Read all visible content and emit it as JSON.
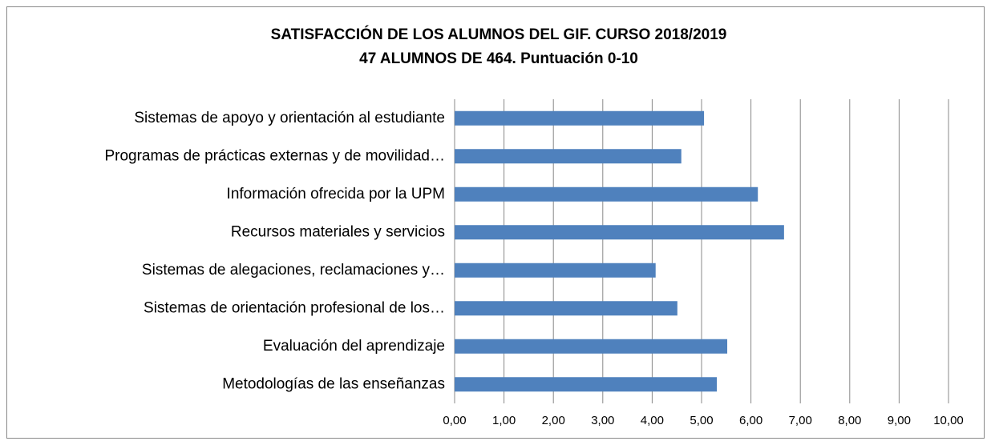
{
  "chart_data": {
    "type": "bar",
    "orientation": "horizontal",
    "title": "SATISFACCIÓN DE LOS ALUMNOS DEL GIF. CURSO 2018/2019",
    "subtitle": "47 ALUMNOS DE 464. Puntuación 0-10",
    "categories": [
      "Sistemas de apoyo y orientación al estudiante",
      "Programas de prácticas externas y de movilidad…",
      "Información ofrecida por la UPM",
      "Recursos materiales y servicios",
      "Sistemas de alegaciones, reclamaciones y…",
      "Sistemas de orientación profesional de los…",
      "Evaluación del aprendizaje",
      "Metodologías de las enseñanzas"
    ],
    "values": [
      5.05,
      4.59,
      6.14,
      6.67,
      4.07,
      4.51,
      5.52,
      5.31
    ],
    "color": "#4f81bd",
    "xlim": [
      0,
      10
    ],
    "xticks": [
      {
        "value": 0,
        "label": "0,00"
      },
      {
        "value": 1,
        "label": "1,00"
      },
      {
        "value": 2,
        "label": "2,00"
      },
      {
        "value": 3,
        "label": "3,00"
      },
      {
        "value": 4,
        "label": "4,00"
      },
      {
        "value": 5,
        "label": "5,00"
      },
      {
        "value": 6,
        "label": "6,00"
      },
      {
        "value": 7,
        "label": "7,00"
      },
      {
        "value": 8,
        "label": "8,00"
      },
      {
        "value": 9,
        "label": "9,00"
      },
      {
        "value": 10,
        "label": "10,00"
      }
    ],
    "grid": true
  }
}
